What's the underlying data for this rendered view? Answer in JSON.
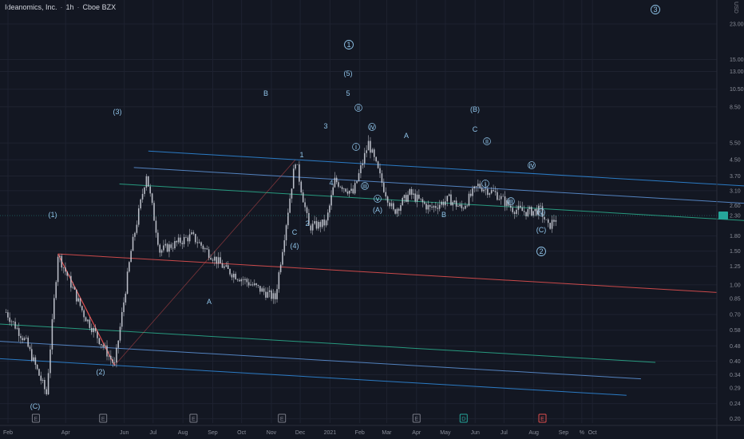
{
  "header": {
    "company": "Ideanomics, Inc.",
    "timeframe": "1h",
    "exchange": "Cboe BZX",
    "currency": "USD"
  },
  "colors": {
    "background": "#131722",
    "candle": "#c9cdd6",
    "channel_outer": "#2e86d6",
    "channel_mid_blue": "#5a8ed0",
    "channel_green": "#2aa889",
    "median_red": "#e04f4f",
    "label": "#8fc3e8",
    "price_tag": "#26a69a"
  },
  "chart_data": {
    "type": "candlestick",
    "y_scale": "log",
    "ylim": [
      0.19,
      23
    ],
    "y_ticks": [
      "23.00",
      "15.00",
      "13.00",
      "10.50",
      "8.50",
      "5.50",
      "4.50",
      "3.70",
      "3.10",
      "2.60",
      "1.80",
      "1.50",
      "1.25",
      "1.00",
      "0.85",
      "0.70",
      "0.58",
      "0.48",
      "0.40",
      "0.34",
      "0.29",
      "0.24",
      "0.20"
    ],
    "y_tick_values": [
      23,
      15,
      13,
      10.5,
      8.5,
      5.5,
      4.5,
      3.7,
      3.1,
      2.6,
      1.8,
      1.5,
      1.25,
      1.0,
      0.85,
      0.7,
      0.58,
      0.48,
      0.4,
      0.34,
      0.29,
      0.24,
      0.2
    ],
    "last_price": "2.30",
    "x_ticks": [
      "Feb",
      "Apr",
      "Jun",
      "Jul",
      "Aug",
      "Sep",
      "Oct",
      "Nov",
      "Dec",
      "2021",
      "Feb",
      "Mar",
      "Apr",
      "May",
      "Jun",
      "Jul",
      "Aug",
      "Sep",
      "%",
      "Oct"
    ],
    "price_path": [
      {
        "date": "2020-01-30",
        "price": 0.72
      },
      {
        "date": "2020-02-20",
        "price": 0.5
      },
      {
        "date": "2020-03-12",
        "price": 0.27
      },
      {
        "date": "2020-03-24",
        "price": 1.45
      },
      {
        "date": "2020-04-20",
        "price": 0.7
      },
      {
        "date": "2020-05-22",
        "price": 0.38
      },
      {
        "date": "2020-06-08",
        "price": 1.5
      },
      {
        "date": "2020-06-24",
        "price": 3.8
      },
      {
        "date": "2020-07-08",
        "price": 1.5
      },
      {
        "date": "2020-08-10",
        "price": 1.8
      },
      {
        "date": "2020-09-15",
        "price": 1.2
      },
      {
        "date": "2020-11-05",
        "price": 0.85
      },
      {
        "date": "2020-11-26",
        "price": 4.5
      },
      {
        "date": "2020-12-10",
        "price": 2.0
      },
      {
        "date": "2020-12-28",
        "price": 2.1
      },
      {
        "date": "2021-01-06",
        "price": 3.5
      },
      {
        "date": "2021-01-25",
        "price": 3.0
      },
      {
        "date": "2021-02-10",
        "price": 5.5
      },
      {
        "date": "2021-02-26",
        "price": 3.2
      },
      {
        "date": "2021-03-08",
        "price": 2.4
      },
      {
        "date": "2021-03-25",
        "price": 3.0
      },
      {
        "date": "2021-04-15",
        "price": 2.5
      },
      {
        "date": "2021-05-05",
        "price": 2.8
      },
      {
        "date": "2021-05-18",
        "price": 2.5
      },
      {
        "date": "2021-06-04",
        "price": 3.3
      },
      {
        "date": "2021-06-22",
        "price": 3.0
      },
      {
        "date": "2021-07-10",
        "price": 2.5
      },
      {
        "date": "2021-07-24",
        "price": 2.4
      },
      {
        "date": "2021-08-08",
        "price": 2.45
      },
      {
        "date": "2021-08-16",
        "price": 2.0
      },
      {
        "date": "2021-08-26",
        "price": 2.3
      }
    ],
    "wave_labels": [
      "(C)",
      "(1)",
      "(2)",
      "(3)",
      "A",
      "B",
      "C",
      "(4)",
      "1",
      "2",
      "3",
      "4",
      "5",
      "(5)",
      "1",
      "i",
      "ii",
      "iii",
      "iv",
      "v",
      "(A)",
      "A",
      "B",
      "C",
      "(B)",
      "i",
      "ii",
      "iii",
      "iv",
      "v",
      "(C)",
      "2",
      "3"
    ],
    "event_markers": [
      "E",
      "E",
      "E",
      "E",
      "E",
      "D",
      "E"
    ]
  }
}
